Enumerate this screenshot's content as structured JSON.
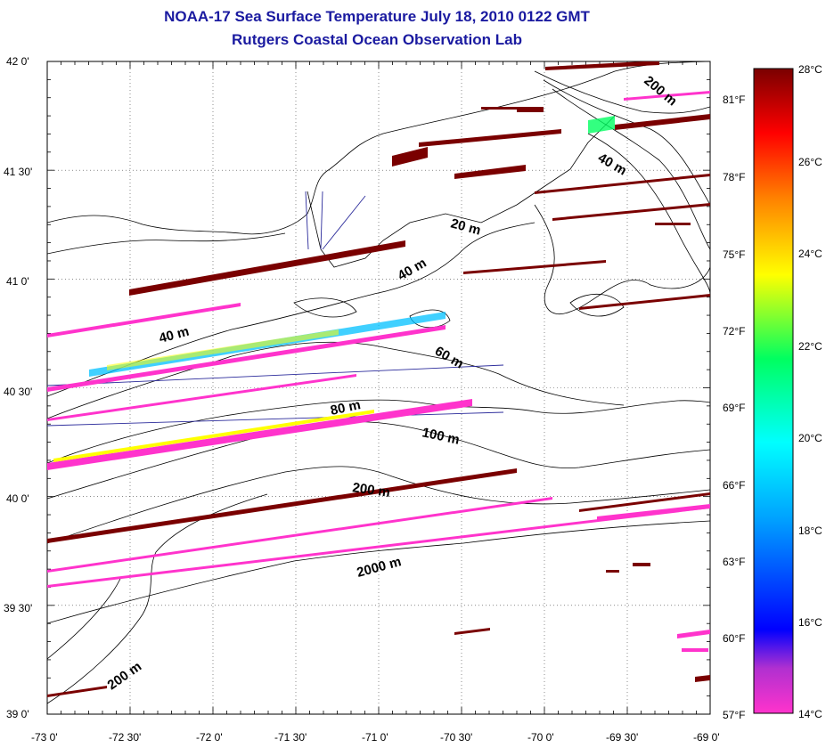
{
  "title": {
    "line1": "NOAA-17 Sea Surface Temperature July 18, 2010 0122 GMT",
    "line2": "Rutgers Coastal Ocean Observation Lab"
  },
  "map": {
    "lat_labels": [
      "42 0'",
      "41 30'",
      "41 0'",
      "40 30'",
      "40 0'",
      "39 30'",
      "39 0'"
    ],
    "lon_labels": [
      "-73 0'",
      "-72 30'",
      "-72 0'",
      "-71 30'",
      "-71 0'",
      "-70 30'",
      "-70 0'",
      "-69 30'",
      "-69 0'"
    ],
    "lat_range": [
      39.0,
      42.0
    ],
    "lon_range": [
      -73.0,
      -69.0
    ],
    "grid": "dotted",
    "contour_labels": [
      "200 m",
      "40 m",
      "20 m",
      "40 m",
      "40 m",
      "60 m",
      "80 m",
      "100 m",
      "200 m",
      "2000 m",
      "200 m"
    ]
  },
  "colorbar": {
    "celsius_labels": [
      "28°C",
      "26°C",
      "24°C",
      "22°C",
      "20°C",
      "18°C",
      "16°C",
      "14°C"
    ],
    "fahrenheit_labels": [
      "81°F",
      "78°F",
      "75°F",
      "72°F",
      "69°F",
      "66°F",
      "63°F",
      "60°F",
      "57°F"
    ],
    "range_c": [
      14,
      28
    ],
    "colors": [
      "#ff33cc",
      "#7a2ab0",
      "#0000ff",
      "#00a0ff",
      "#00ffff",
      "#00ff60",
      "#ffff00",
      "#ff8000",
      "#ff0000",
      "#7a0000"
    ]
  }
}
